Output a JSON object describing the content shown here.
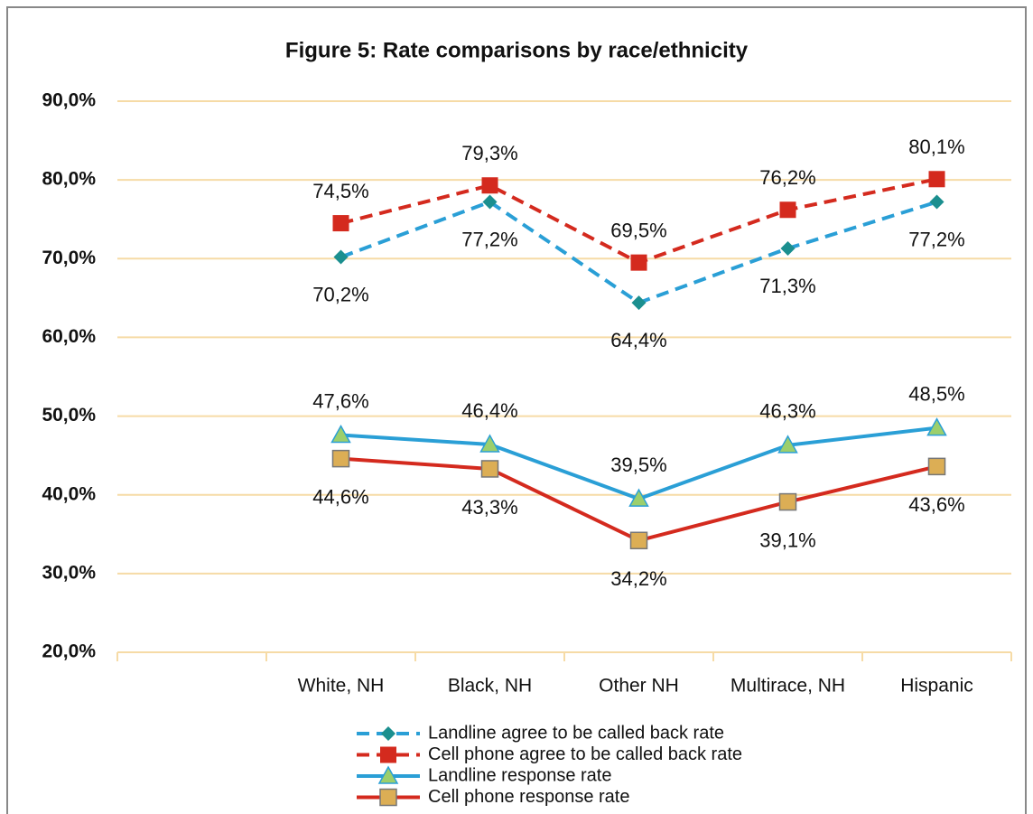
{
  "chart_data": {
    "type": "line",
    "title": "Figure 5: Rate comparisons by race/ethnicity",
    "categories": [
      null,
      "White, NH",
      "Black, NH",
      "Other NH",
      "Multirace, NH",
      "Hispanic"
    ],
    "ylim": [
      20,
      90
    ],
    "yticks": [
      {
        "value": 20,
        "label": "20,0%"
      },
      {
        "value": 30,
        "label": "30,0%"
      },
      {
        "value": 40,
        "label": "40,0%"
      },
      {
        "value": 50,
        "label": "50,0%"
      },
      {
        "value": 60,
        "label": "60,0%"
      },
      {
        "value": 70,
        "label": "70,0%"
      },
      {
        "value": 80,
        "label": "80,0%"
      },
      {
        "value": 90,
        "label": "90,0%"
      }
    ],
    "grid": true,
    "legend": "bottom",
    "series": [
      {
        "name": "Landline agree to be called back rate",
        "color": "#2a9fd6",
        "dash": true,
        "marker": "diamond",
        "marker_color": "#1b8f8f",
        "values": [
          null,
          70.2,
          77.2,
          64.4,
          71.3,
          77.2
        ],
        "value_labels": [
          null,
          "70,2%",
          "77,2%",
          "64,4%",
          "71,3%",
          "77,2%"
        ]
      },
      {
        "name": "Cell phone agree to be called back rate",
        "color": "#d42a1e",
        "dash": true,
        "marker": "square",
        "marker_color": "#d42a1e",
        "values": [
          null,
          74.5,
          79.3,
          69.5,
          76.2,
          80.1
        ],
        "value_labels": [
          null,
          "74,5%",
          "79,3%",
          "69,5%",
          "76,2%",
          "80,1%"
        ]
      },
      {
        "name": "Landline response rate",
        "color": "#2a9fd6",
        "dash": false,
        "marker": "triangle",
        "marker_color": "#9ccf6c",
        "values": [
          null,
          47.6,
          46.4,
          39.5,
          46.3,
          48.5
        ],
        "value_labels": [
          null,
          "47,6%",
          "46,4%",
          "39,5%",
          "46,3%",
          "48,5%"
        ]
      },
      {
        "name": "Cell phone response rate",
        "color": "#d42a1e",
        "dash": false,
        "marker": "square",
        "marker_color": "#dcae55",
        "values": [
          null,
          44.6,
          43.3,
          34.2,
          39.1,
          43.6
        ],
        "value_labels": [
          null,
          "44,6%",
          "43,3%",
          "34,2%",
          "39,1%",
          "43,6%"
        ]
      }
    ]
  }
}
